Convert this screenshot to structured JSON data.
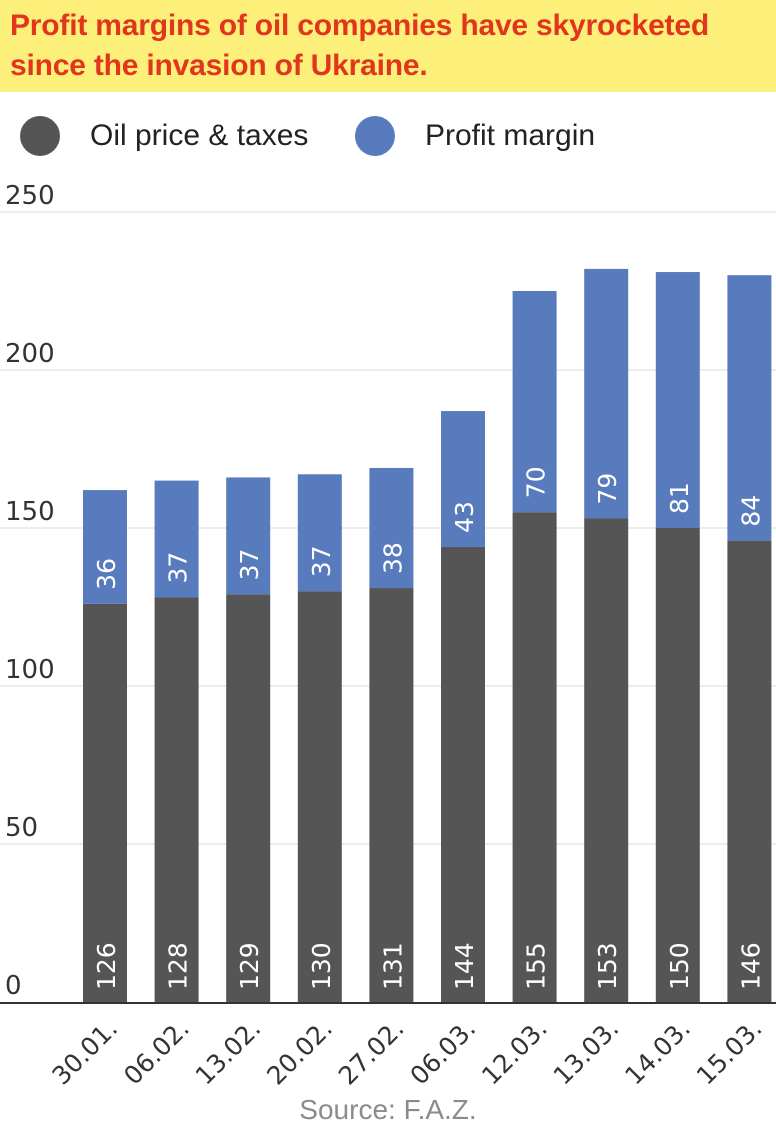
{
  "title": "Profit margins of oil companies have skyrocketed since the invasion of Ukraine.",
  "title_lines": [
    "Profit margins of oil companies have skyrocketed",
    "since the invasion of Ukraine."
  ],
  "legend": [
    {
      "label": "Oil price & taxes",
      "color": "#555555"
    },
    {
      "label": "Profit margin",
      "color": "#587bbd"
    }
  ],
  "source": "Source: F.A.Z.",
  "colors": {
    "title": "#e2351d",
    "banner": "#fdf07a",
    "grid": "#e6e6e6",
    "axis": "#333333"
  },
  "chart_data": {
    "type": "bar",
    "stacked": true,
    "categories": [
      "30.01.",
      "06.02.",
      "13.02.",
      "20.02.",
      "27.02.",
      "06.03.",
      "12.03.",
      "13.03.",
      "14.03.",
      "15.03."
    ],
    "series": [
      {
        "name": "Oil price & taxes",
        "color": "#555555",
        "values": [
          126,
          128,
          129,
          130,
          131,
          144,
          155,
          153,
          150,
          146
        ]
      },
      {
        "name": "Profit margin",
        "color": "#587bbd",
        "values": [
          36,
          37,
          37,
          37,
          38,
          43,
          70,
          79,
          81,
          84
        ]
      }
    ],
    "ylim": [
      0,
      250
    ],
    "yticks": [
      0,
      50,
      100,
      150,
      200,
      250
    ],
    "grid": true,
    "legend_position": "top-left"
  }
}
